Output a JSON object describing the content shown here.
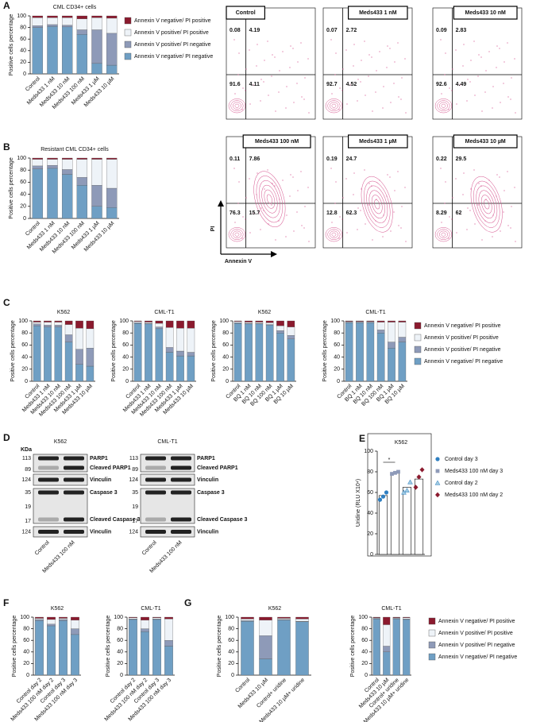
{
  "panel_labels": [
    "A",
    "B",
    "C",
    "D",
    "E",
    "F",
    "G"
  ],
  "chart_data": [
    {
      "type": "bar",
      "stacked": true,
      "title": "CML CD34+ cells",
      "y_label": "Positive cells percentage",
      "categories": [
        "Control",
        "Meds433 1 nM",
        "Meds433 10 nM",
        "Meds433 100 nM",
        "Meds433 1 µM",
        "Meds433 10 µM"
      ],
      "ylim": [
        0,
        100
      ],
      "yticks": [
        0,
        20,
        40,
        60,
        80,
        100
      ],
      "legend": "right",
      "series": [
        {
          "name": "Annexin V negative/ PI negative",
          "color": "#6f9fc4",
          "values": [
            80,
            82,
            81,
            68,
            18,
            15
          ]
        },
        {
          "name": "Annexin V positive/ PI negative",
          "color": "#8e9ab8",
          "values": [
            3,
            3,
            3,
            8,
            58,
            55
          ]
        },
        {
          "name": "Annexin V positive/ PI positive",
          "color": "#eef3f8",
          "values": [
            14,
            12,
            13,
            19,
            21,
            26
          ]
        },
        {
          "name": "Annexin V negative/ PI positive",
          "color": "#8b1a2e",
          "values": [
            3,
            3,
            3,
            5,
            3,
            4
          ]
        }
      ]
    },
    {
      "type": "bar",
      "stacked": true,
      "title": "Resistant CML CD34+ cells",
      "y_label": "Positive cells percentage",
      "categories": [
        "Control",
        "Meds433 1 nM",
        "Meds433 10 nM",
        "Meds433 100 nM",
        "Meds433 1 µM",
        "Meds433 10 µM"
      ],
      "ylim": [
        0,
        100
      ],
      "yticks": [
        0,
        20,
        40,
        60,
        80,
        100
      ],
      "series": [
        {
          "color": "#6f9fc4",
          "values": [
            82,
            83,
            73,
            55,
            20,
            18
          ]
        },
        {
          "color": "#8e9ab8",
          "values": [
            5,
            5,
            8,
            13,
            35,
            32
          ]
        },
        {
          "color": "#eef3f8",
          "values": [
            11,
            10,
            17,
            30,
            43,
            48
          ]
        },
        {
          "color": "#8b1a2e",
          "values": [
            2,
            2,
            2,
            2,
            2,
            2
          ]
        }
      ]
    },
    {
      "type": "bar",
      "stacked": true,
      "title": "K562",
      "y_label": "Positive cells percentage",
      "categories": [
        "Control",
        "Meds433 1 nM",
        "Meds433 10 nM",
        "Meds433 100 nM",
        "Meds433 1 µM",
        "Meds433 10 µM"
      ],
      "ylim": [
        0,
        100
      ],
      "yticks": [
        0,
        20,
        40,
        60,
        80,
        100
      ],
      "series": [
        {
          "color": "#6f9fc4",
          "values": [
            92,
            90,
            90,
            65,
            28,
            25
          ]
        },
        {
          "color": "#8e9ab8",
          "values": [
            3,
            3,
            3,
            12,
            25,
            30
          ]
        },
        {
          "color": "#eef3f8",
          "values": [
            3,
            5,
            5,
            17,
            35,
            32
          ]
        },
        {
          "color": "#8b1a2e",
          "values": [
            2,
            2,
            2,
            6,
            12,
            13
          ]
        }
      ]
    },
    {
      "type": "bar",
      "stacked": true,
      "title": "CML-T1",
      "y_label": "Positive cells percentage",
      "categories": [
        "Control",
        "Meds433 1 nM",
        "Meds433 10 nM",
        "Meds433 100 nM",
        "Meds433 1 µM",
        "Meds433 10 µM"
      ],
      "ylim": [
        0,
        100
      ],
      "yticks": [
        0,
        20,
        40,
        60,
        80,
        100
      ],
      "series": [
        {
          "color": "#6f9fc4",
          "values": [
            96,
            95,
            87,
            48,
            42,
            42
          ]
        },
        {
          "color": "#8e9ab8",
          "values": [
            1,
            1,
            3,
            8,
            8,
            6
          ]
        },
        {
          "color": "#eef3f8",
          "values": [
            2,
            2,
            6,
            33,
            38,
            40
          ]
        },
        {
          "color": "#8b1a2e",
          "values": [
            1,
            2,
            4,
            11,
            12,
            12
          ]
        }
      ]
    },
    {
      "type": "bar",
      "stacked": true,
      "title": "K562",
      "y_label": "Positive cells percentage",
      "categories": [
        "Control",
        "BQ 1 nM",
        "BQ 10 nM",
        "BQ 100 nM",
        "BQ 1 µM",
        "BQ 10 µM"
      ],
      "ylim": [
        0,
        100
      ],
      "yticks": [
        0,
        20,
        40,
        60,
        80,
        100
      ],
      "series": [
        {
          "color": "#6f9fc4",
          "values": [
            96,
            95,
            95,
            93,
            80,
            70
          ]
        },
        {
          "color": "#8e9ab8",
          "values": [
            1,
            1,
            1,
            1,
            4,
            6
          ]
        },
        {
          "color": "#eef3f8",
          "values": [
            2,
            2,
            2,
            3,
            8,
            14
          ]
        },
        {
          "color": "#8b1a2e",
          "values": [
            1,
            2,
            2,
            3,
            8,
            10
          ]
        }
      ]
    },
    {
      "type": "bar",
      "stacked": true,
      "title": "CML-T1",
      "y_label": "Positive cells percentage",
      "categories": [
        "Control",
        "BQ 1 nM",
        "BQ 10 nM",
        "BQ 100 nM",
        "BQ 1 µM",
        "BQ 10 µM"
      ],
      "ylim": [
        0,
        100
      ],
      "yticks": [
        0,
        20,
        40,
        60,
        80,
        100
      ],
      "legend": "right",
      "series": [
        {
          "name": "Annexin V negative/ PI negative",
          "color": "#6f9fc4",
          "values": [
            97,
            97,
            97,
            80,
            55,
            65
          ]
        },
        {
          "name": "Annexin V positive/ PI negative",
          "color": "#8e9ab8",
          "values": [
            1,
            1,
            1,
            5,
            10,
            8
          ]
        },
        {
          "name": "Annexin V positive/ PI positive",
          "color": "#eef3f8",
          "values": [
            1,
            1,
            1,
            13,
            33,
            25
          ]
        },
        {
          "name": "Annexin V negative/ PI positive",
          "color": "#8b1a2e",
          "values": [
            1,
            1,
            1,
            2,
            2,
            2
          ]
        }
      ]
    },
    {
      "type": "dotbar",
      "title": "K562",
      "y_label": "Uridine (RLU X10⁴)",
      "annotation": "*",
      "ylim": [
        0,
        100
      ],
      "yticks": [
        0,
        20,
        40,
        60,
        80,
        100
      ],
      "legend": "right",
      "values": [
        57,
        79,
        65,
        73
      ],
      "points": [
        {
          "name": "Control day 3",
          "color": "#2f7fc1",
          "marker": "circle",
          "values": [
            53,
            56,
            60
          ]
        },
        {
          "name": "Meds433 100 nM day 3",
          "color": "#8e9ab8",
          "marker": "square",
          "values": [
            78,
            79,
            80
          ]
        },
        {
          "name": "Control day 2",
          "color": "#9ecae1",
          "marker": "triangle",
          "values": [
            60,
            62,
            70
          ]
        },
        {
          "name": "Meds433 100 nM day 2",
          "color": "#8b1a2e",
          "marker": "diamond",
          "values": [
            65,
            75,
            82
          ]
        }
      ]
    },
    {
      "type": "bar",
      "stacked": true,
      "title": "K562",
      "y_label": "Positive cells percentage",
      "categories": [
        "Control day 2",
        "Meds433 100 nM day 2",
        "Control day 3",
        "Meds433 100 nM day 3"
      ],
      "ylim": [
        0,
        100
      ],
      "yticks": [
        0,
        20,
        40,
        60,
        80,
        100
      ],
      "series": [
        {
          "color": "#6f9fc4",
          "values": [
            94,
            85,
            94,
            70
          ]
        },
        {
          "color": "#8e9ab8",
          "values": [
            2,
            3,
            2,
            10
          ]
        },
        {
          "color": "#eef3f8",
          "values": [
            2,
            8,
            2,
            15
          ]
        },
        {
          "color": "#8b1a2e",
          "values": [
            2,
            4,
            2,
            5
          ]
        }
      ]
    },
    {
      "type": "bar",
      "stacked": true,
      "title": "CML-T1",
      "y_label": "Positive cells percentage",
      "categories": [
        "Control day 2",
        "Meds433 100 nM day 2",
        "Control day 3",
        "Meds433 100 nM day 3"
      ],
      "ylim": [
        0,
        100
      ],
      "yticks": [
        0,
        20,
        40,
        60,
        80,
        100
      ],
      "series": [
        {
          "color": "#6f9fc4",
          "values": [
            96,
            75,
            96,
            50
          ]
        },
        {
          "color": "#8e9ab8",
          "values": [
            1,
            5,
            1,
            10
          ]
        },
        {
          "color": "#eef3f8",
          "values": [
            2,
            15,
            2,
            37
          ]
        },
        {
          "color": "#8b1a2e",
          "values": [
            1,
            5,
            1,
            3
          ]
        }
      ]
    },
    {
      "type": "bar",
      "stacked": true,
      "title": "K562",
      "y_label": "Positive cells percentage",
      "categories": [
        "Control",
        "Meds433 10 µM",
        "Control+ uridine",
        "Meds433 10 µM+ uridine"
      ],
      "ylim": [
        0,
        100
      ],
      "yticks": [
        0,
        20,
        40,
        60,
        80,
        100
      ],
      "series": [
        {
          "color": "#6f9fc4",
          "values": [
            93,
            28,
            95,
            92
          ]
        },
        {
          "color": "#8e9ab8",
          "values": [
            1,
            40,
            1,
            1
          ]
        },
        {
          "color": "#eef3f8",
          "values": [
            3,
            27,
            2,
            4
          ]
        },
        {
          "color": "#8b1a2e",
          "values": [
            3,
            5,
            2,
            3
          ]
        }
      ]
    },
    {
      "type": "bar",
      "stacked": true,
      "title": "CML-T1",
      "y_label": "Positive cells percentage",
      "categories": [
        "Control",
        "Meds433 10 µM",
        "Control+ uridine",
        "Meds433 10 µM+ uridine"
      ],
      "ylim": [
        0,
        100
      ],
      "yticks": [
        0,
        20,
        40,
        60,
        80,
        100
      ],
      "legend": "right",
      "series": [
        {
          "name": "Annexin V negative/ PI negative",
          "color": "#6f9fc4",
          "values": [
            97,
            40,
            97,
            96
          ]
        },
        {
          "name": "Annexin V positive/ PI negative",
          "color": "#8e9ab8",
          "values": [
            1,
            10,
            1,
            1
          ]
        },
        {
          "name": "Annexin V positive/ PI positive",
          "color": "#eef3f8",
          "values": [
            1,
            37,
            1,
            2
          ]
        },
        {
          "name": "Annexin V negative/ PI positive",
          "color": "#8b1a2e",
          "values": [
            1,
            13,
            1,
            1
          ]
        }
      ]
    }
  ],
  "flow_plots": {
    "y_label": "PI",
    "x_label": "Annexin V",
    "plots": [
      {
        "label": "Control",
        "quadrants": [
          0.08,
          4.19,
          91.6,
          4.11
        ]
      },
      {
        "label": "Meds433 1 nM",
        "quadrants": [
          0.07,
          2.72,
          92.7,
          4.52
        ]
      },
      {
        "label": "Meds433 10 nM",
        "quadrants": [
          0.09,
          2.83,
          92.6,
          4.49
        ]
      },
      {
        "label": "Meds433 100 nM",
        "quadrants": [
          0.11,
          7.86,
          76.3,
          15.7
        ]
      },
      {
        "label": "Meds433 1 µM",
        "quadrants": [
          0.19,
          24.7,
          12.8,
          62.3
        ]
      },
      {
        "label": "Meds433 10 µM",
        "quadrants": [
          0.22,
          29.5,
          8.29,
          62
        ]
      }
    ]
  },
  "blot": {
    "lanes": [
      "Control",
      "Meds433 100 nM"
    ],
    "panels": [
      {
        "title": "K562",
        "unit": "KDa",
        "rows": [
          {
            "kda": [
              113,
              89
            ],
            "labels": [
              "PARP1",
              "Cleaved PARP1"
            ]
          },
          {
            "kda": [
              124
            ],
            "labels": [
              "Vinculin"
            ]
          },
          {
            "kda": [
              35,
              19,
              17
            ],
            "labels": [
              "Caspase 3",
              "Cleaved Caspase 3"
            ]
          },
          {
            "kda": [
              124
            ],
            "labels": [
              "Vinculin"
            ]
          }
        ]
      },
      {
        "title": "CML-T1",
        "rows": [
          {
            "kda": [
              113,
              89
            ],
            "labels": [
              "PARP1",
              "Cleaved PARP1"
            ]
          },
          {
            "kda": [
              124
            ],
            "labels": [
              "Vinculin"
            ]
          },
          {
            "kda": [
              35,
              19,
              17
            ],
            "labels": [
              "Caspase 3",
              "Cleaved Caspase 3"
            ]
          },
          {
            "kda": [
              124
            ],
            "labels": [
              "Vinculin"
            ]
          }
        ]
      }
    ]
  }
}
